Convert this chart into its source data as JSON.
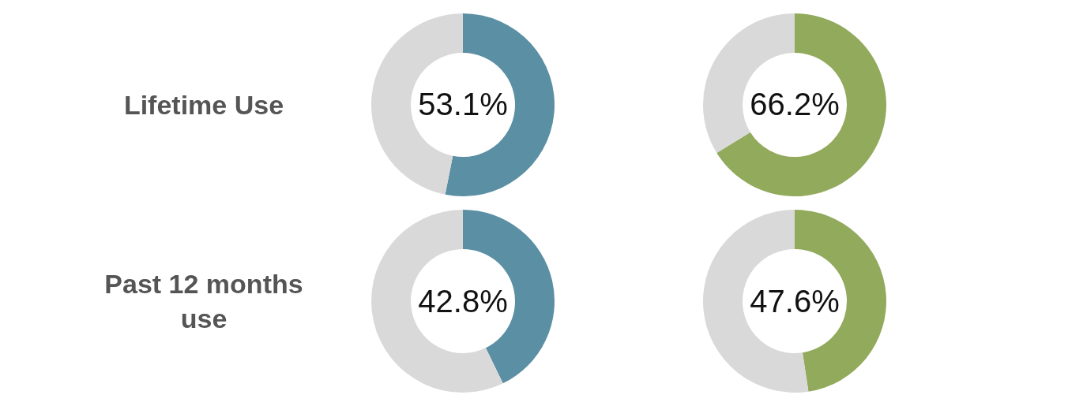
{
  "chart_data": [
    {
      "type": "donut",
      "title": "Lifetime Use",
      "categories": [
        null,
        null
      ],
      "values": [
        53.1,
        46.9
      ],
      "colors": [
        "#5b8fa3",
        "#d9d9d9"
      ],
      "value_labels": [
        "53.1%",
        null
      ]
    },
    {
      "type": "donut",
      "categories": [
        null,
        null
      ],
      "values": [
        66.2,
        33.8
      ],
      "colors": [
        "#92aa5c",
        "#d9d9d9"
      ],
      "value_labels": [
        "66.2%",
        null
      ]
    },
    {
      "type": "donut",
      "title": "Past 12 months use",
      "categories": [
        null,
        null
      ],
      "values": [
        42.8,
        57.2
      ],
      "colors": [
        "#5b8fa3",
        "#d9d9d9"
      ],
      "value_labels": [
        "42.8%",
        null
      ]
    },
    {
      "type": "donut",
      "categories": [
        null,
        null
      ],
      "values": [
        47.6,
        52.4
      ],
      "colors": [
        "#92aa5c",
        "#d9d9d9"
      ],
      "value_labels": [
        "47.6%",
        null
      ]
    }
  ]
}
